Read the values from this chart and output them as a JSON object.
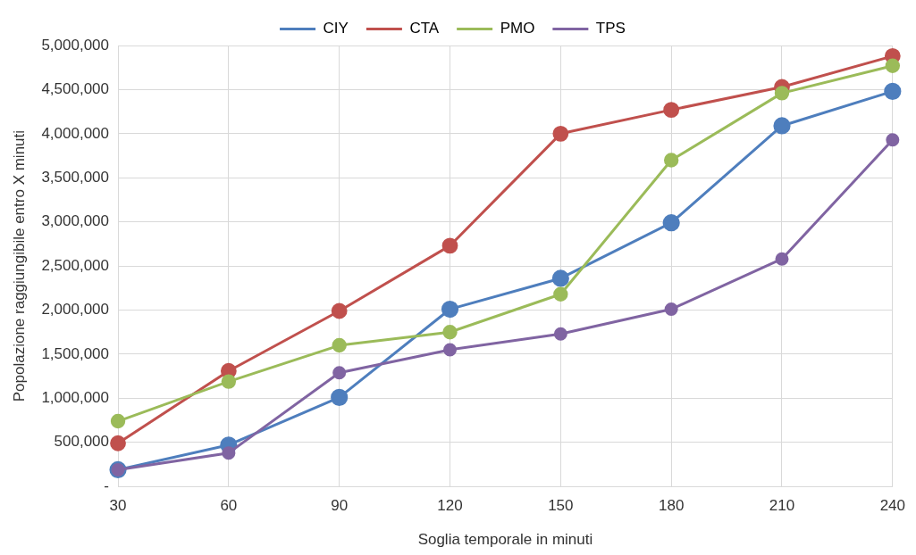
{
  "chart_data": {
    "type": "line",
    "xlabel": "Soglia temporale in minuti",
    "ylabel": "Popolazione raggiungibile entro X minuti",
    "categories": [
      "30",
      "60",
      "90",
      "120",
      "150",
      "180",
      "210",
      "240"
    ],
    "series": [
      {
        "name": "CIY",
        "color": "#4e7ebd",
        "values": [
          190000,
          470000,
          1010000,
          2010000,
          2360000,
          2990000,
          4090000,
          4480000
        ]
      },
      {
        "name": "CTA",
        "color": "#c0504d",
        "values": [
          490000,
          1310000,
          1990000,
          2730000,
          4000000,
          4270000,
          4530000,
          4880000
        ]
      },
      {
        "name": "PMO",
        "color": "#9bbb59",
        "values": [
          740000,
          1190000,
          1600000,
          1750000,
          2180000,
          3700000,
          4460000,
          4770000
        ]
      },
      {
        "name": "TPS",
        "color": "#8064a2",
        "values": [
          190000,
          380000,
          1290000,
          1550000,
          1730000,
          2010000,
          2580000,
          3930000
        ]
      }
    ],
    "ylim": [
      0,
      5000000
    ],
    "yticks": [
      {
        "value": 0,
        "label": "-"
      },
      {
        "value": 500000,
        "label": "500,000"
      },
      {
        "value": 1000000,
        "label": "1,000,000"
      },
      {
        "value": 1500000,
        "label": "1,500,000"
      },
      {
        "value": 2000000,
        "label": "2,000,000"
      },
      {
        "value": 2500000,
        "label": "2,500,000"
      },
      {
        "value": 3000000,
        "label": "3,000,000"
      },
      {
        "value": 3500000,
        "label": "3,500,000"
      },
      {
        "value": 4000000,
        "label": "4,000,000"
      },
      {
        "value": 4500000,
        "label": "4,500,000"
      },
      {
        "value": 5000000,
        "label": "5,000,000"
      }
    ],
    "grid": true,
    "legend": "top",
    "marker": "circle",
    "line_style": "solid"
  }
}
